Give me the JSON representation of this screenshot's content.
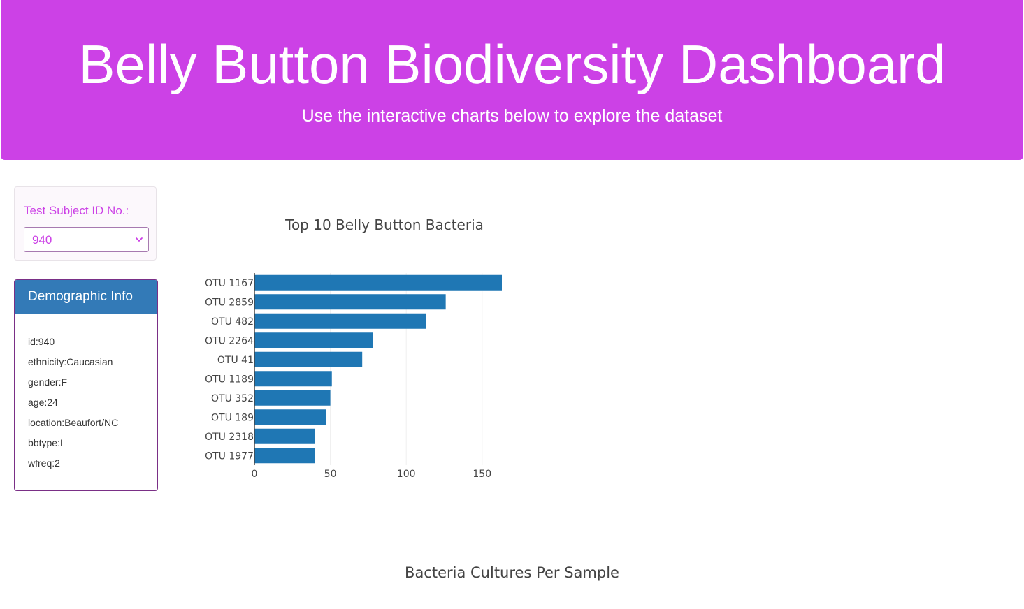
{
  "header": {
    "title": "Belly Button Biodiversity Dashboard",
    "subtitle": "Use the interactive charts below to explore the dataset"
  },
  "selector": {
    "label": "Test Subject ID No.:",
    "selected_value": "940"
  },
  "demographic": {
    "heading": "Demographic Info",
    "rows": [
      "id:940",
      "ethnicity:Caucasian",
      "gender:F",
      "age:24",
      "location:Beaufort/NC",
      "bbtype:I",
      "wfreq:2"
    ]
  },
  "colors": {
    "header_bg": "#cc41e6",
    "panel_heading": "#337ab7",
    "bar": "#1f77b4"
  },
  "chart_data": [
    {
      "type": "bar",
      "orientation": "horizontal",
      "title": "Top 10 Belly Button Bacteria",
      "categories": [
        "OTU 1167",
        "OTU 2859",
        "OTU 482",
        "OTU 2264",
        "OTU 41",
        "OTU 1189",
        "OTU 352",
        "OTU 189",
        "OTU 2318",
        "OTU 1977"
      ],
      "values": [
        163,
        126,
        113,
        78,
        71,
        51,
        50,
        47,
        40,
        40
      ],
      "xlim": [
        0,
        163
      ],
      "xticks": [
        0,
        50,
        100,
        150
      ],
      "grid": "vertical"
    }
  ],
  "bubble_chart": {
    "title": "Bacteria Cultures Per Sample"
  }
}
